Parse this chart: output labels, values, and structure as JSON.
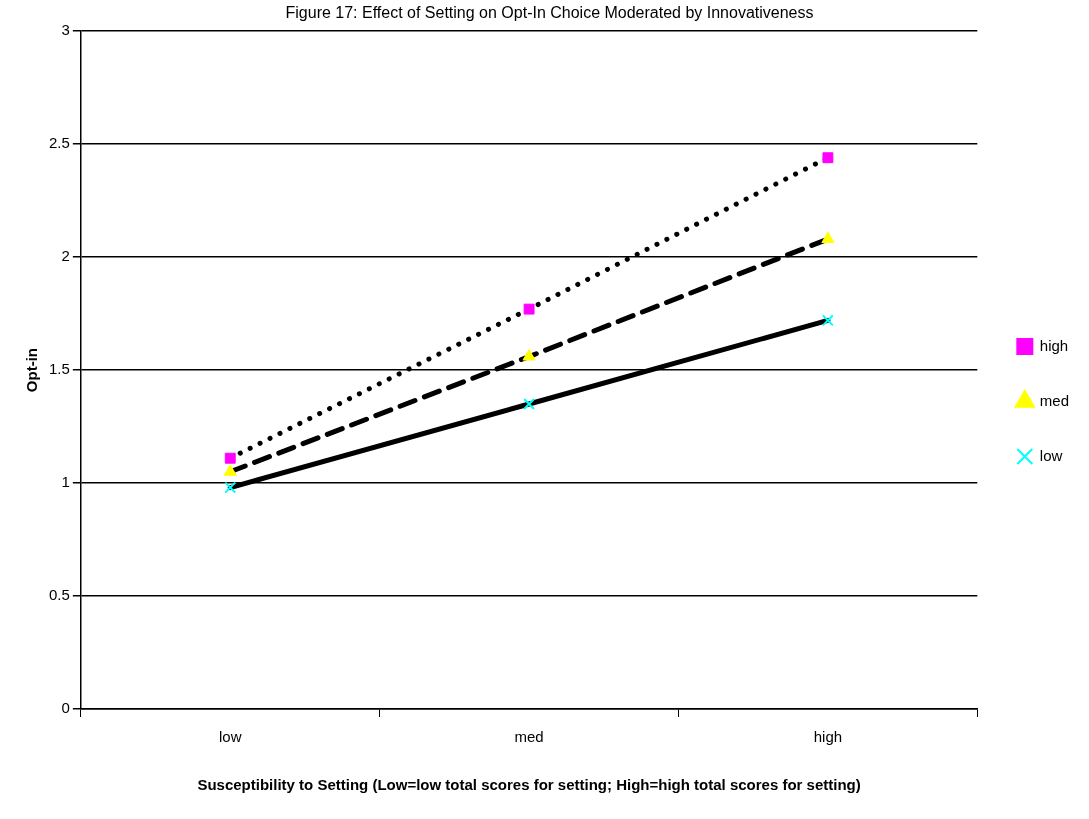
{
  "chart_data": {
    "type": "line",
    "title": "Figure 17: Effect of Setting on Opt-In Choice Moderated by Innovativeness",
    "xlabel": "Susceptibility to Setting (Low=low total scores for setting; High=high total scores for setting)",
    "ylabel": "Opt-in",
    "categories": [
      "low",
      "med",
      "high"
    ],
    "series": [
      {
        "name": "high",
        "color": "#ff00ff",
        "marker": "square",
        "line_style": "dotted",
        "values": [
          1.11,
          1.77,
          2.44
        ]
      },
      {
        "name": "med",
        "color": "#ffff00",
        "marker": "triangle",
        "line_style": "dashed",
        "values": [
          1.05,
          1.56,
          2.08
        ]
      },
      {
        "name": "low",
        "color": "#00ffff",
        "marker": "cross",
        "line_style": "solid",
        "values": [
          0.98,
          1.35,
          1.72
        ]
      }
    ],
    "ylim": [
      0,
      3
    ],
    "yticks": [
      0,
      0.5,
      1,
      1.5,
      2,
      2.5,
      3
    ],
    "grid": "y",
    "legend": "right"
  }
}
